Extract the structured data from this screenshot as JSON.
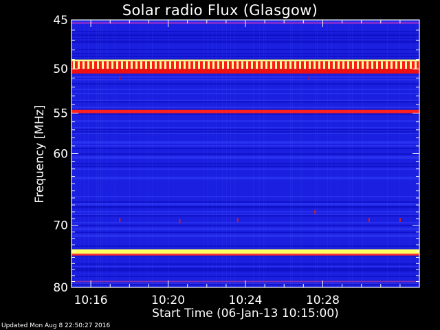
{
  "chart_data": {
    "type": "heatmap",
    "title": "Solar radio Flux (Glasgow)",
    "xlabel": "Start Time (06-Jan-13 10:15:00)",
    "ylabel": "Frequency [MHz]",
    "x_unit": "minutes after 10:15:00",
    "xlim": [
      0,
      18
    ],
    "ylim": [
      45,
      80
    ],
    "y_scale": "log",
    "y_inverted": true,
    "x_ticks": [
      {
        "value": 1,
        "label": "10:16"
      },
      {
        "value": 5,
        "label": "10:20"
      },
      {
        "value": 9,
        "label": "10:24"
      },
      {
        "value": 13,
        "label": "10:28"
      }
    ],
    "y_ticks": [
      {
        "value": 45,
        "label": "45"
      },
      {
        "value": 50,
        "label": "50"
      },
      {
        "value": 55,
        "label": "55"
      },
      {
        "value": 60,
        "label": "60"
      },
      {
        "value": 70,
        "label": "70"
      },
      {
        "value": 80,
        "label": "80"
      }
    ],
    "background_color": "#1a1fe0",
    "bands": [
      {
        "freq_low": 45.2,
        "freq_high": 45.4,
        "color": "#7a2bd0"
      },
      {
        "freq_low": 49.0,
        "freq_high": 49.2,
        "color": "#ffff80"
      },
      {
        "freq_low": 49.2,
        "freq_high": 50.0,
        "color": "#ff1a1a",
        "pattern": "teeth",
        "tooth_color": "#ffffa0"
      },
      {
        "freq_low": 50.0,
        "freq_high": 50.5,
        "color": "#ee1010"
      },
      {
        "freq_low": 54.6,
        "freq_high": 55.0,
        "color": "#ff2020"
      },
      {
        "freq_low": 73.7,
        "freq_high": 74.4,
        "color": "#ffff60"
      },
      {
        "freq_low": 74.4,
        "freq_high": 74.7,
        "color": "#ff3030"
      },
      {
        "freq_low": 78.9,
        "freq_high": 79.1,
        "color": "#8a30b0"
      }
    ],
    "spots": [
      {
        "x": 2.5,
        "freq": 51.0,
        "color": "#cc1010"
      },
      {
        "x": 12.3,
        "freq": 51.0,
        "color": "#cc1010"
      },
      {
        "x": 2.5,
        "freq": 69.2,
        "color": "#cc2020"
      },
      {
        "x": 5.6,
        "freq": 69.4,
        "color": "#cc2020"
      },
      {
        "x": 8.6,
        "freq": 69.2,
        "color": "#cc2020"
      },
      {
        "x": 12.6,
        "freq": 68.0,
        "color": "#cc2020"
      },
      {
        "x": 15.4,
        "freq": 69.2,
        "color": "#cc2020"
      },
      {
        "x": 17.0,
        "freq": 69.2,
        "color": "#cc2020"
      }
    ]
  },
  "footer": "Updated Mon Aug  8 22:50:27 2016"
}
